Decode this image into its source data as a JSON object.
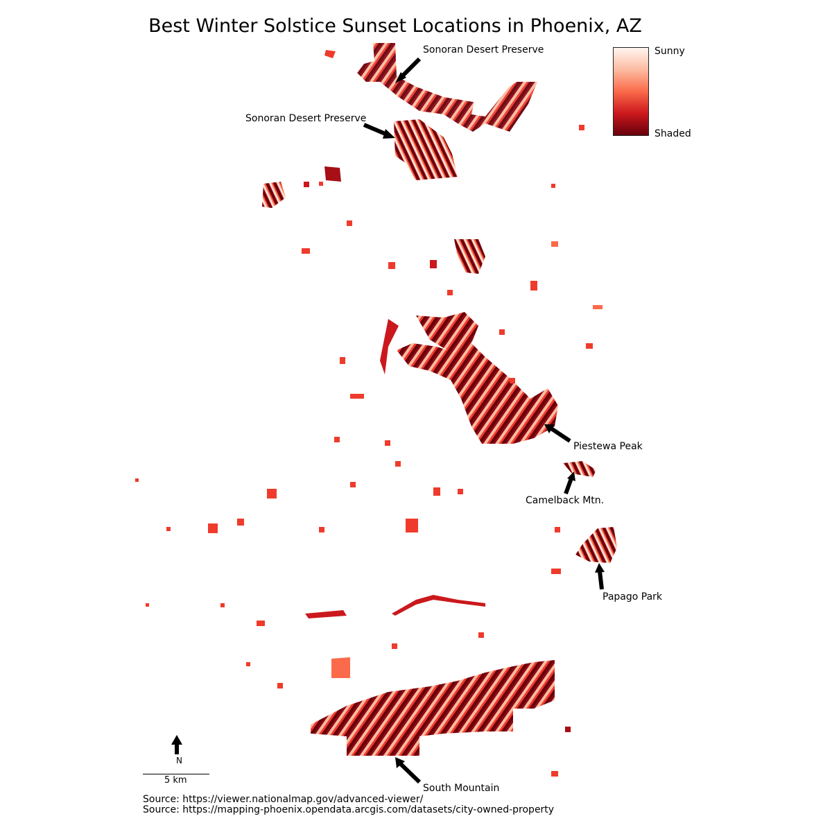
{
  "title": "Best Winter Solstice Sunset Locations in Phoenix, AZ",
  "legend": {
    "top_label": "Sunny",
    "bottom_label": "Shaded",
    "colors": [
      "#fff5f0",
      "#fcbba1",
      "#fb6a4a",
      "#cb181d",
      "#67000d"
    ]
  },
  "annotations": {
    "sonoran_upper": "Sonoran Desert Preserve",
    "sonoran_lower": "Sonoran Desert Preserve",
    "piestewa": "Piestewa Peak",
    "camelback": "Camelback Mtn.",
    "papago": "Papago Park",
    "south_mountain": "South Mountain"
  },
  "north_arrow": {
    "label": "N",
    "icon": "north-arrow-icon"
  },
  "scale_bar": {
    "label": "5 km"
  },
  "sources": [
    "Source: https://viewer.nationalmap.gov/advanced-viewer/",
    "Source: https://mapping-phoenix.opendata.arcgis.com/datasets/city-owned-property"
  ],
  "arrow_color": "#000000"
}
